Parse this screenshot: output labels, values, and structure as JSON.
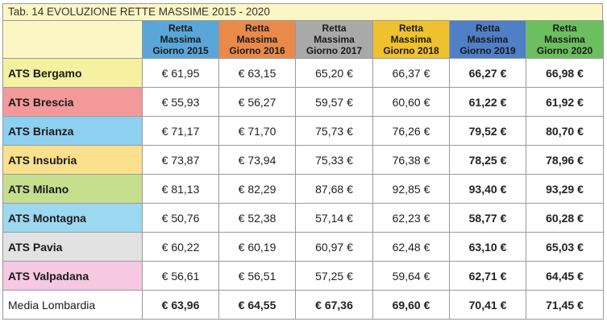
{
  "title": "Tab. 14 EVOLUZIONE RETTE MASSIME 2015 - 2020",
  "columns": [
    {
      "line1": "Retta",
      "line2": "Massima",
      "line3": "Giorno 2015",
      "color": "#5aa6d8"
    },
    {
      "line1": "Retta",
      "line2": "Massima",
      "line3": "Giorno 2016",
      "color": "#e98a4b"
    },
    {
      "line1": "Retta",
      "line2": "Massima",
      "line3": "Giorno 2017",
      "color": "#a9a9a9"
    },
    {
      "line1": "Retta",
      "line2": "Massima",
      "line3": "Giorno 2018",
      "color": "#f0c12e"
    },
    {
      "line1": "Retta",
      "line2": "Massima",
      "line3": "Giorno 2019",
      "color": "#4f7fc7"
    },
    {
      "line1": "Retta",
      "line2": "Massima",
      "line3": "Giorno 2020",
      "color": "#6bbf5e"
    }
  ],
  "rows": [
    {
      "name": "ATS Bergamo",
      "color": "#f6f1a0",
      "values": [
        "€ 61,95",
        "€ 63,15",
        "65,20 €",
        "66,37 €",
        "66,27 €",
        "66,98 €"
      ]
    },
    {
      "name": "ATS Brescia",
      "color": "#f4999a",
      "values": [
        "€ 55,93",
        "€ 56,27",
        "59,57 €",
        "60,60 €",
        "61,22 €",
        "61,92 €"
      ]
    },
    {
      "name": "ATS Brianza",
      "color": "#8ed0ef",
      "values": [
        "€ 71,17",
        "€ 71,70",
        "75,73 €",
        "76,26 €",
        "79,52 €",
        "80,70 €"
      ]
    },
    {
      "name": "ATS Insubria",
      "color": "#fbe08e",
      "values": [
        "€ 73,87",
        "€ 73,94",
        "75,33 €",
        "76,38 €",
        "78,25 €",
        "78,96 €"
      ]
    },
    {
      "name": "ATS Milano",
      "color": "#c6df8e",
      "values": [
        "€ 81,13",
        "€ 82,29",
        "87,68 €",
        "92,85 €",
        "93,40 €",
        "93,29 €"
      ]
    },
    {
      "name": "ATS Montagna",
      "color": "#9dd8f1",
      "values": [
        "€ 50,76",
        "€ 52,38",
        "57,14 €",
        "62,23 €",
        "58,77 €",
        "60,28 €"
      ]
    },
    {
      "name": "ATS Pavia",
      "color": "#e2e2e2",
      "values": [
        "€ 60,22",
        "€ 60,19",
        "60,97 €",
        "62,48 €",
        "63,10 €",
        "65,03 €"
      ]
    },
    {
      "name": "ATS Valpadana",
      "color": "#f6c8e2",
      "values": [
        "€ 56,61",
        "€ 56,51",
        "57,25 €",
        "59,64 €",
        "62,71 €",
        "64,45 €"
      ]
    },
    {
      "name": "Media Lombardia",
      "color": "#ffffff",
      "values": [
        "€ 63,96",
        "€ 64,55",
        "€ 67,36",
        "69,60 €",
        "70,41 €",
        "71,45 €"
      ]
    }
  ]
}
